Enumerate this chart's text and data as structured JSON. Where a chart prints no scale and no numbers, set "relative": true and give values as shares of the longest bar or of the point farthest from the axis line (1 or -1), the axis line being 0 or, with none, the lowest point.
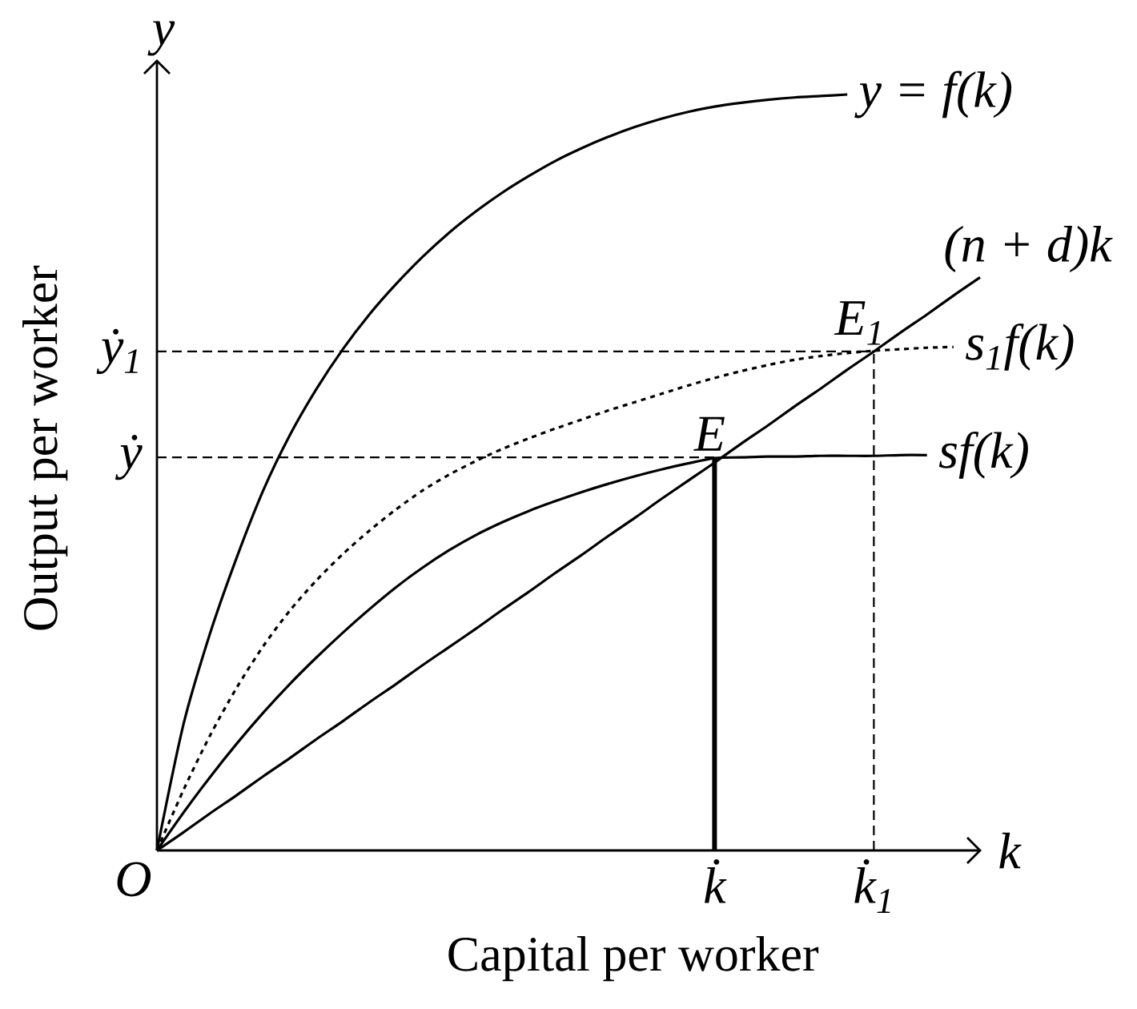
{
  "chart_data": {
    "type": "line",
    "relative": true,
    "xlabel": "Capital per worker",
    "ylabel": "Output per worker",
    "line_style": "solid",
    "categories": [
      null,
      null,
      null,
      null,
      null,
      null,
      null,
      null,
      null,
      null,
      null,
      null,
      null,
      null,
      null,
      null,
      null,
      null,
      null,
      null,
      null,
      "k̇",
      null,
      null,
      null,
      null,
      null,
      "k̇$_{1}$",
      null,
      null,
      null,
      null
    ],
    "series": [
      {
        "name": "y = f(k)",
        "color": "#000000",
        "values": [
          0,
          0.167,
          0.287,
          0.387,
          0.476,
          0.549,
          0.61,
          0.663,
          0.709,
          0.749,
          0.785,
          0.817,
          0.845,
          0.87,
          0.892,
          0.912,
          0.929,
          0.944,
          0.957,
          0.968,
          0.977,
          0.984,
          0.989,
          0.993,
          0.996,
          0.998,
          1,
          null,
          null,
          null,
          null,
          null
        ]
      },
      {
        "name": "(n + d)k",
        "color": "#000000",
        "values": [
          0,
          0.024,
          0.049,
          0.073,
          0.098,
          0.122,
          0.147,
          0.171,
          0.196,
          0.22,
          0.245,
          0.269,
          0.293,
          0.318,
          0.342,
          0.367,
          0.391,
          0.416,
          0.44,
          0.465,
          0.489,
          0.513,
          0.538,
          0.562,
          0.587,
          0.611,
          0.636,
          0.66,
          0.685,
          0.709,
          0.734,
          0.758
        ]
      },
      {
        "name": "s$_{1}$f(k)",
        "color": "#000000",
        "line_style": "dotted",
        "values": [
          0,
          0.08,
          0.152,
          0.215,
          0.27,
          0.317,
          0.357,
          0.392,
          0.423,
          0.451,
          0.476,
          0.497,
          0.515,
          0.531,
          0.545,
          0.558,
          0.57,
          0.582,
          0.593,
          0.604,
          0.615,
          0.625,
          0.634,
          0.642,
          0.649,
          0.654,
          0.658,
          0.661,
          0.663,
          0.665,
          0.666,
          null
        ]
      },
      {
        "name": "sf(k)",
        "color": "#000000",
        "values": [
          0,
          0.05,
          0.097,
          0.141,
          0.182,
          0.22,
          0.255,
          0.288,
          0.319,
          0.348,
          0.374,
          0.397,
          0.417,
          0.434,
          0.449,
          0.462,
          0.474,
          0.485,
          0.495,
          0.504,
          0.512,
          0.519,
          0.52,
          0.521,
          0.521,
          0.522,
          0.522,
          0.522,
          0.523,
          0.523,
          null,
          null
        ]
      }
    ],
    "ref_lines": [
      {
        "axis": "x",
        "value": "k̇",
        "line_style": "solid"
      },
      {
        "axis": "x",
        "value": "k̇$_{1}$",
        "line_style": "dashed"
      },
      {
        "axis": "y",
        "value": 0.52,
        "label": "ẏ",
        "line_style": "dashed"
      },
      {
        "axis": "y",
        "value": 0.66,
        "label": "ẏ$_{1}$",
        "line_style": "dashed"
      }
    ],
    "annotations": [
      "O",
      "y",
      "k",
      {
        "text": "E",
        "x": "k̇",
        "y": 0.52
      },
      {
        "text": "E$_{1}$",
        "x": "k̇$_{1}$",
        "y": 0.66
      }
    ]
  }
}
